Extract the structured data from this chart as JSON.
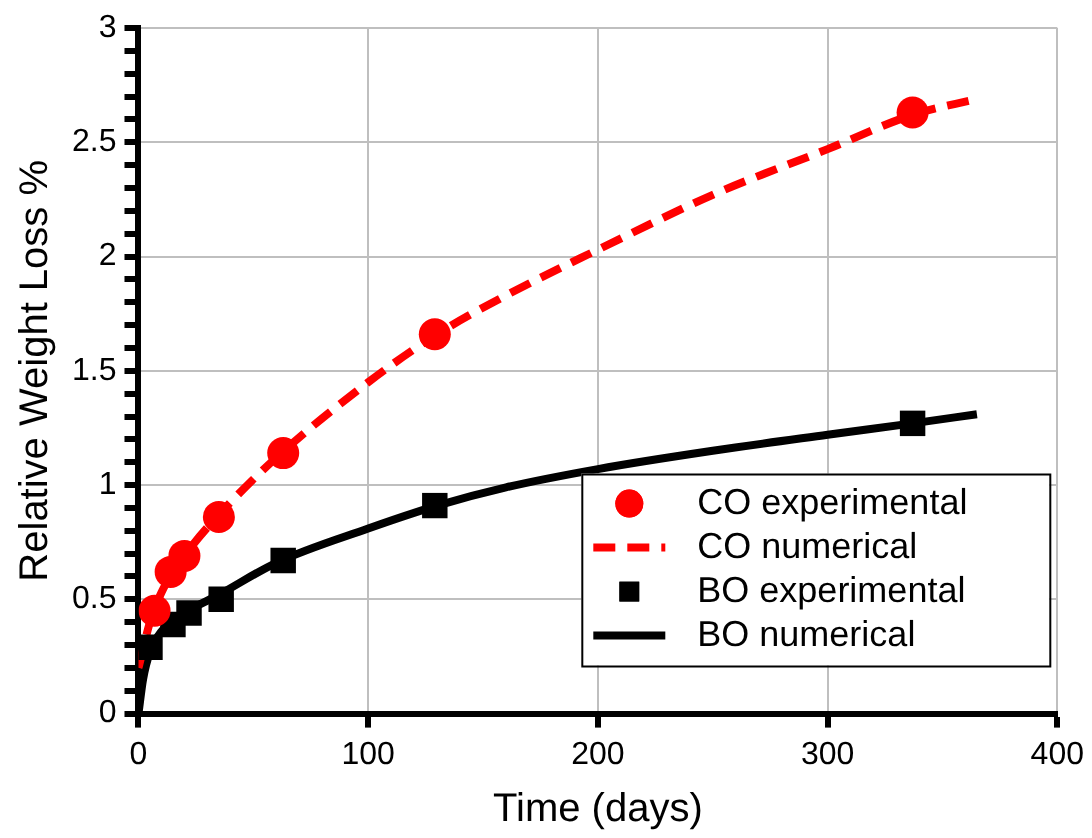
{
  "chart_data": {
    "type": "scatter",
    "xlabel": "Time (days)",
    "ylabel": "Relative Weight Loss %",
    "xlim": [
      0,
      400
    ],
    "xticks": [
      0,
      100,
      200,
      300,
      400
    ],
    "ylim": [
      0,
      3
    ],
    "yticks": [
      0,
      {
        "value": 0.1,
        "label": null
      },
      {
        "value": 0.2,
        "label": null
      },
      {
        "value": 0.3,
        "label": null
      },
      {
        "value": 0.4,
        "label": null
      },
      0.5,
      {
        "value": 0.6,
        "label": null
      },
      {
        "value": 0.7,
        "label": null
      },
      {
        "value": 0.8,
        "label": null
      },
      {
        "value": 0.9,
        "label": null
      },
      1,
      {
        "value": 1.1,
        "label": null
      },
      {
        "value": 1.2,
        "label": null
      },
      {
        "value": 1.3,
        "label": null
      },
      {
        "value": 1.4,
        "label": null
      },
      1.5,
      {
        "value": 1.6,
        "label": null
      },
      {
        "value": 1.7,
        "label": null
      },
      {
        "value": 1.8,
        "label": null
      },
      {
        "value": 1.9,
        "label": null
      },
      2,
      {
        "value": 2.1,
        "label": null
      },
      {
        "value": 2.2,
        "label": null
      },
      {
        "value": 2.3,
        "label": null
      },
      {
        "value": 2.4,
        "label": null
      },
      2.5,
      {
        "value": 2.6,
        "label": null
      },
      {
        "value": 2.7,
        "label": null
      },
      {
        "value": 2.8,
        "label": null
      },
      {
        "value": 2.9,
        "label": null
      },
      3
    ],
    "grid": true,
    "legend": "bottom right",
    "series": [
      {
        "name": "CO experimental",
        "marker": "circle",
        "color": "#ff0000",
        "x": [
          7,
          14,
          20,
          35,
          63,
          129,
          337
        ],
        "values": [
          0.45,
          0.62,
          0.69,
          0.86,
          1.14,
          1.66,
          2.63
        ]
      },
      {
        "name": "CO numerical",
        "type": "line",
        "marker": "none",
        "line_style": "dashed",
        "color": "#ff0000",
        "x": [
          0,
          5,
          10,
          20,
          35,
          60,
          100,
          130,
          160,
          200,
          250,
          300,
          337,
          365
        ],
        "values": [
          0.2,
          0.4,
          0.53,
          0.69,
          0.87,
          1.12,
          1.45,
          1.66,
          1.83,
          2.03,
          2.27,
          2.47,
          2.62,
          2.69
        ]
      },
      {
        "name": "BO experimental",
        "marker": "square",
        "color": "#000000",
        "x": [
          5,
          15,
          22,
          36,
          63,
          129,
          337
        ],
        "values": [
          0.29,
          0.39,
          0.44,
          0.5,
          0.67,
          0.91,
          1.27
        ]
      },
      {
        "name": "BO numerical",
        "type": "line",
        "marker": "none",
        "line_style": "solid",
        "color": "#000000",
        "x": [
          0,
          2,
          5,
          10,
          20,
          35,
          60,
          100,
          130,
          160,
          200,
          250,
          300,
          337,
          365
        ],
        "values": [
          0,
          0.15,
          0.27,
          0.36,
          0.44,
          0.52,
          0.66,
          0.81,
          0.91,
          0.99,
          1.07,
          1.15,
          1.22,
          1.27,
          1.31
        ]
      }
    ]
  }
}
